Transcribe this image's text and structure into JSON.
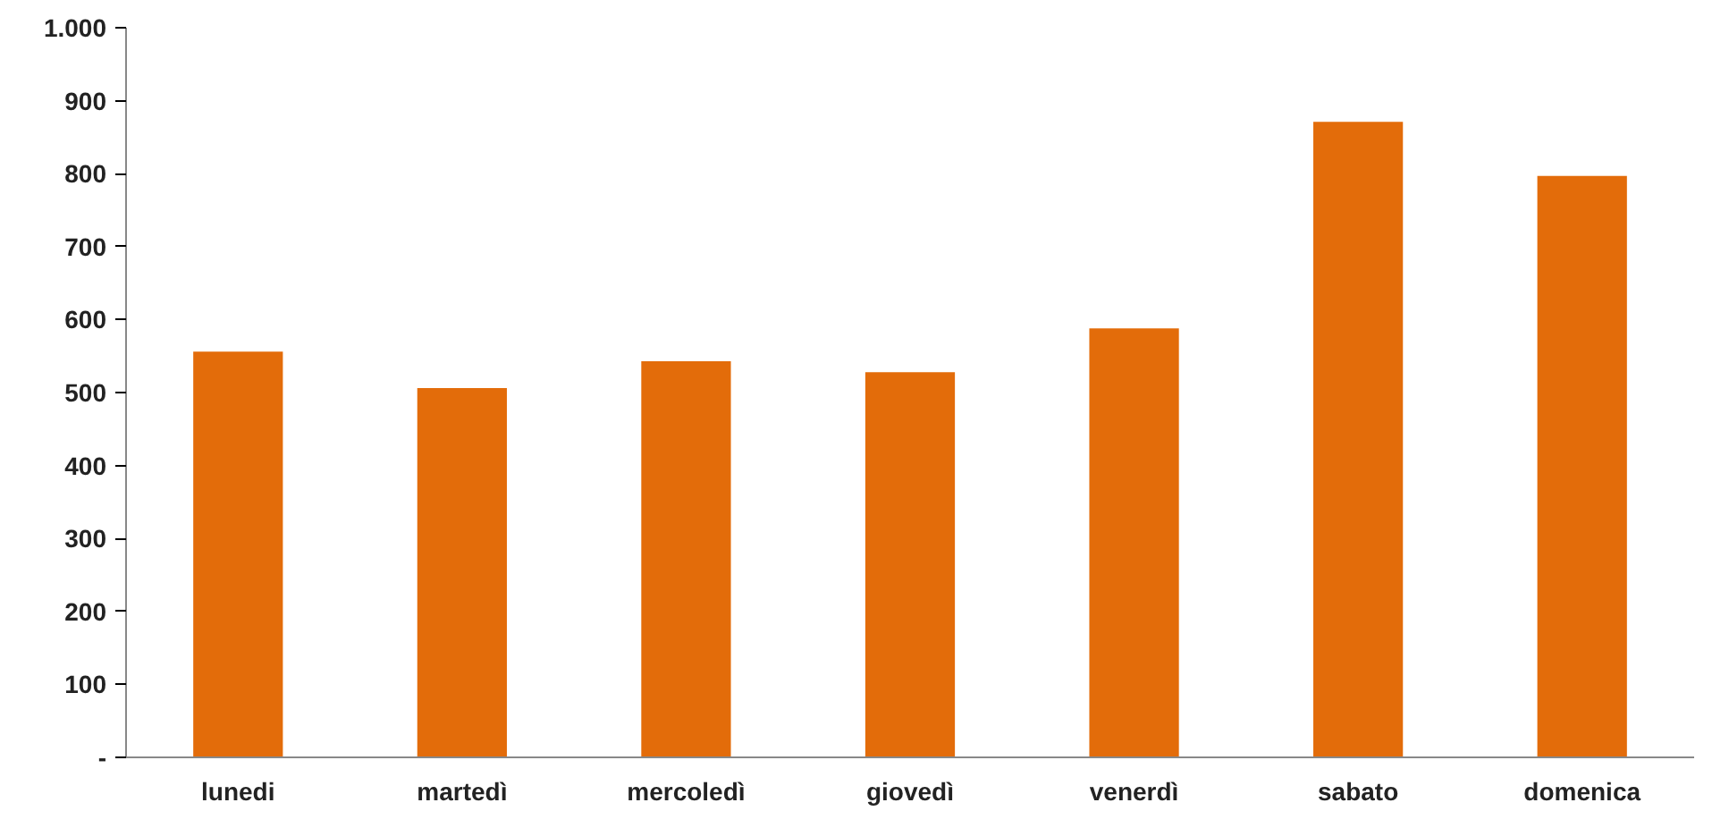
{
  "chart_data": {
    "type": "bar",
    "categories": [
      "lunedi",
      "martedì",
      "mercoledì",
      "giovedì",
      "venerdì",
      "sabato",
      "domenica"
    ],
    "values": [
      556,
      506,
      543,
      528,
      588,
      871,
      797
    ],
    "color": "#e36c0a",
    "ylim": [
      0,
      1000
    ],
    "yticks": [
      {
        "value": 0,
        "label": "-"
      },
      100,
      200,
      300,
      400,
      500,
      600,
      700,
      800,
      900,
      {
        "value": 1000,
        "label": "1.000"
      }
    ],
    "grid": false
  }
}
